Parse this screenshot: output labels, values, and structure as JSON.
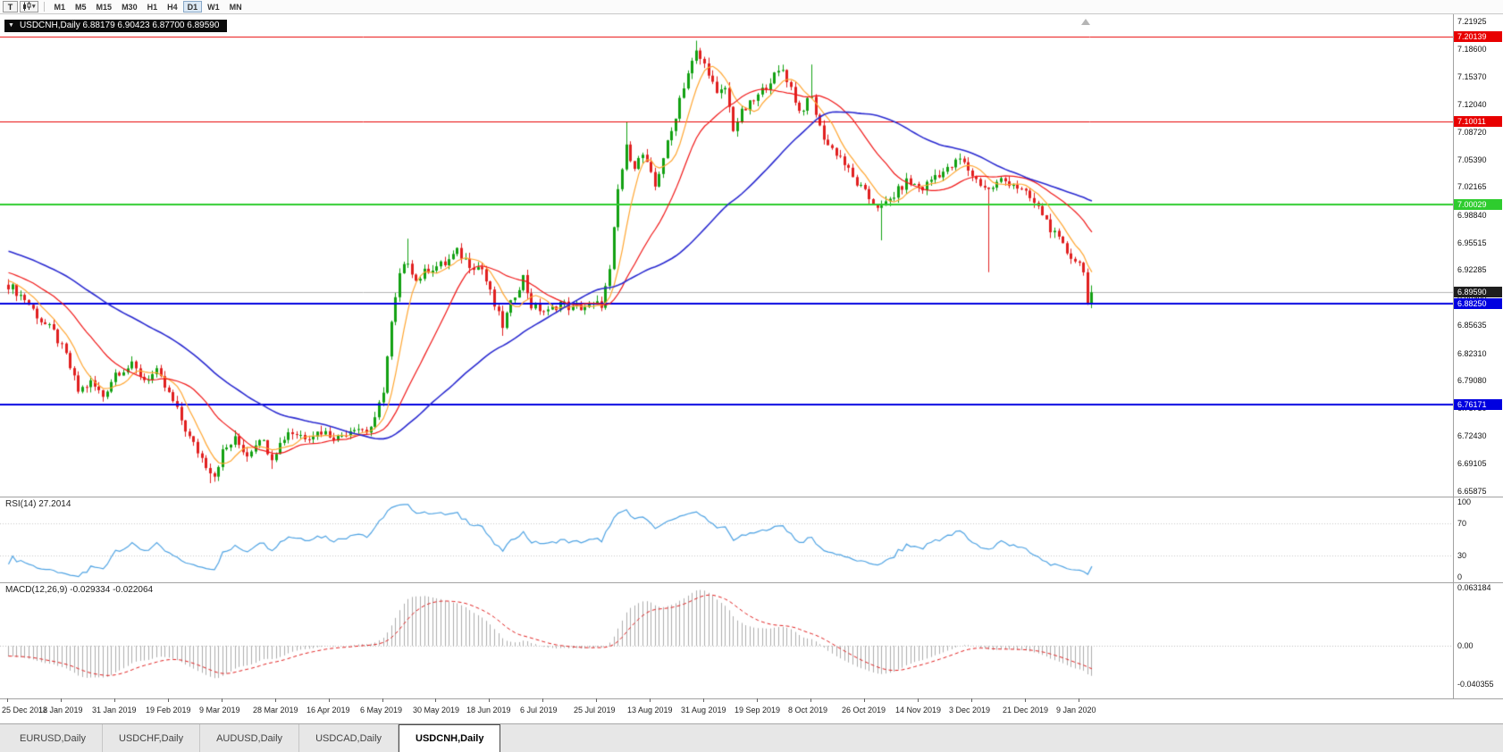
{
  "toolbar": {
    "text_tool_label": "T",
    "dropdown_icon": "▾",
    "timeframes": [
      "M1",
      "M5",
      "M15",
      "M30",
      "H1",
      "H4",
      "D1",
      "W1",
      "MN"
    ],
    "active_timeframe": "D1"
  },
  "chart": {
    "menu_icon": "▼",
    "title": "USDCNH,Daily 6.88179 6.90423 6.87700 6.89590",
    "symbol": "USDCNH",
    "period": "Daily",
    "quote_open": "6.88179",
    "quote_high": "6.90423",
    "quote_low": "6.87700",
    "quote_close": "6.89590",
    "price_axis_labels": [
      "7.21925",
      "7.18600",
      "7.15370",
      "7.12040",
      "7.08720",
      "7.05390",
      "7.02165",
      "6.98840",
      "6.95515",
      "6.92285",
      "6.88960",
      "6.85635",
      "6.82310",
      "6.79080",
      "6.75750",
      "6.72430",
      "6.69105",
      "6.65875"
    ],
    "hlines": [
      {
        "price": 7.20139,
        "label": "7.20139",
        "color": "#E80000",
        "width": 1
      },
      {
        "price": 7.10011,
        "label": "7.10011",
        "color": "#E80000",
        "width": 1
      },
      {
        "price": 7.00029,
        "label": "7.00029",
        "color": "#2ECC2E",
        "width": 2
      },
      {
        "price": 6.8825,
        "label": "6.88250",
        "color": "#0000E0",
        "width": 2
      },
      {
        "price": 6.76171,
        "label": "6.76171",
        "color": "#0000E0",
        "width": 2
      }
    ],
    "current_price": {
      "value": 6.8959,
      "label": "6.89590",
      "line_color": "#B4B4B4",
      "label_bg": "#1E1E1E"
    }
  },
  "rsi": {
    "label": "RSI(14) 27.2014",
    "period": 14,
    "value": "27.2014",
    "axis_labels": [
      "100",
      "70",
      "30",
      "0"
    ],
    "axis_values": [
      100,
      70,
      30,
      0
    ],
    "line_color": "#4FA3E3",
    "level_lines": [
      70,
      30
    ]
  },
  "macd": {
    "label": "MACD(12,26,9) -0.029334 -0.022064",
    "params": [
      12,
      26,
      9
    ],
    "macd_value": "-0.029334",
    "signal_value": "-0.022064",
    "axis_labels": [
      "0.063184",
      "0.00",
      "-0.040355"
    ],
    "max": 0.063184,
    "min": -0.040355,
    "hist_color": "#ADADAD",
    "signal_color": "#E02020"
  },
  "date_axis": [
    "25 Dec 2018",
    "12 Jan 2019",
    "31 Jan 2019",
    "19 Feb 2019",
    "9 Mar 2019",
    "28 Mar 2019",
    "16 Apr 2019",
    "6 May 2019",
    "30 May 2019",
    "18 Jun 2019",
    "6 Jul 2019",
    "25 Jul 2019",
    "13 Aug 2019",
    "31 Aug 2019",
    "19 Sep 2019",
    "8 Oct 2019",
    "26 Oct 2019",
    "14 Nov 2019",
    "3 Dec 2019",
    "21 Dec 2019",
    "9 Jan 2020"
  ],
  "tabs": {
    "items": [
      "EURUSD,Daily",
      "USDCHF,Daily",
      "AUDUSD,Daily",
      "USDCAD,Daily",
      "USDCNH,Daily"
    ],
    "active": "USDCNH,Daily"
  },
  "chart_data": {
    "type": "candlestick",
    "symbol": "USDCNH",
    "timeframe": "Daily",
    "candle_count": 264,
    "y_range": {
      "top": 7.228,
      "bottom": 6.652
    },
    "x_layout": {
      "x_start": 8,
      "spacing": 4.61,
      "body_width": 3,
      "labels_every": 13
    },
    "colors": {
      "up": "#12A112",
      "down": "#E01F1F",
      "ma_fast": "#FFA632",
      "ma_mid": "#F01818",
      "ma_slow": "#2A2AD0"
    },
    "indicators": {
      "ma_fast_period": 7,
      "ma_mid_period": 20,
      "ma_slow_period": 52,
      "rsi_period": 14,
      "macd_fast": 12,
      "macd_slow": 26,
      "macd_signal": 9
    },
    "synthesis": {
      "prehistory_bars": 60,
      "prehistory_slope": 0.0016,
      "noise_body": 0.011,
      "noise_wick": 0.007
    },
    "last_candle": {
      "open": 6.88179,
      "high": 6.90423,
      "low": 6.877,
      "close": 6.8959
    },
    "price_keypoints": [
      [
        0,
        6.905
      ],
      [
        4,
        6.888
      ],
      [
        8,
        6.862
      ],
      [
        11,
        6.848
      ],
      [
        14,
        6.82
      ],
      [
        17,
        6.778
      ],
      [
        20,
        6.788
      ],
      [
        23,
        6.772
      ],
      [
        26,
        6.8
      ],
      [
        30,
        6.808
      ],
      [
        33,
        6.792
      ],
      [
        36,
        6.8
      ],
      [
        40,
        6.765
      ],
      [
        44,
        6.722
      ],
      [
        48,
        6.69
      ],
      [
        50,
        6.678
      ],
      [
        52,
        6.705
      ],
      [
        55,
        6.72
      ],
      [
        58,
        6.702
      ],
      [
        61,
        6.724
      ],
      [
        64,
        6.7
      ],
      [
        68,
        6.73
      ],
      [
        72,
        6.724
      ],
      [
        76,
        6.73
      ],
      [
        80,
        6.722
      ],
      [
        84,
        6.736
      ],
      [
        87,
        6.73
      ],
      [
        89,
        6.742
      ],
      [
        91,
        6.78
      ],
      [
        93,
        6.858
      ],
      [
        95,
        6.916
      ],
      [
        97,
        6.934
      ],
      [
        99,
        6.91
      ],
      [
        102,
        6.924
      ],
      [
        106,
        6.93
      ],
      [
        109,
        6.944
      ],
      [
        112,
        6.93
      ],
      [
        115,
        6.924
      ],
      [
        118,
        6.88
      ],
      [
        120,
        6.856
      ],
      [
        123,
        6.894
      ],
      [
        125,
        6.914
      ],
      [
        127,
        6.88
      ],
      [
        131,
        6.872
      ],
      [
        134,
        6.884
      ],
      [
        137,
        6.876
      ],
      [
        140,
        6.879
      ],
      [
        144,
        6.882
      ],
      [
        146,
        6.92
      ],
      [
        148,
        7.018
      ],
      [
        150,
        7.068
      ],
      [
        152,
        7.048
      ],
      [
        154,
        7.06
      ],
      [
        157,
        7.022
      ],
      [
        159,
        7.058
      ],
      [
        161,
        7.088
      ],
      [
        163,
        7.128
      ],
      [
        165,
        7.158
      ],
      [
        167,
        7.182
      ],
      [
        170,
        7.16
      ],
      [
        172,
        7.13
      ],
      [
        174,
        7.14
      ],
      [
        176,
        7.092
      ],
      [
        178,
        7.11
      ],
      [
        182,
        7.13
      ],
      [
        185,
        7.15
      ],
      [
        188,
        7.162
      ],
      [
        190,
        7.14
      ],
      [
        192,
        7.112
      ],
      [
        195,
        7.128
      ],
      [
        197,
        7.092
      ],
      [
        199,
        7.072
      ],
      [
        202,
        7.058
      ],
      [
        205,
        7.032
      ],
      [
        209,
        7.008
      ],
      [
        212,
        6.996
      ],
      [
        215,
        7.012
      ],
      [
        218,
        7.028
      ],
      [
        222,
        7.02
      ],
      [
        225,
        7.036
      ],
      [
        228,
        7.042
      ],
      [
        231,
        7.055
      ],
      [
        235,
        7.03
      ],
      [
        238,
        7.018
      ],
      [
        241,
        7.03
      ],
      [
        244,
        7.026
      ],
      [
        248,
        7.008
      ],
      [
        251,
        6.99
      ],
      [
        254,
        6.964
      ],
      [
        257,
        6.944
      ],
      [
        260,
        6.93
      ],
      [
        261,
        6.925
      ],
      [
        262,
        6.882
      ],
      [
        263,
        6.8959
      ]
    ],
    "wick_overrides": {
      "49": {
        "l": 6.668
      },
      "64": {
        "l": 6.685
      },
      "97": {
        "h": 6.96
      },
      "120": {
        "l": 6.844
      },
      "150": {
        "h": 7.1
      },
      "167": {
        "h": 7.1965
      },
      "195": {
        "h": 7.168
      },
      "212": {
        "l": 6.958
      },
      "238": {
        "l": 6.92
      }
    }
  }
}
